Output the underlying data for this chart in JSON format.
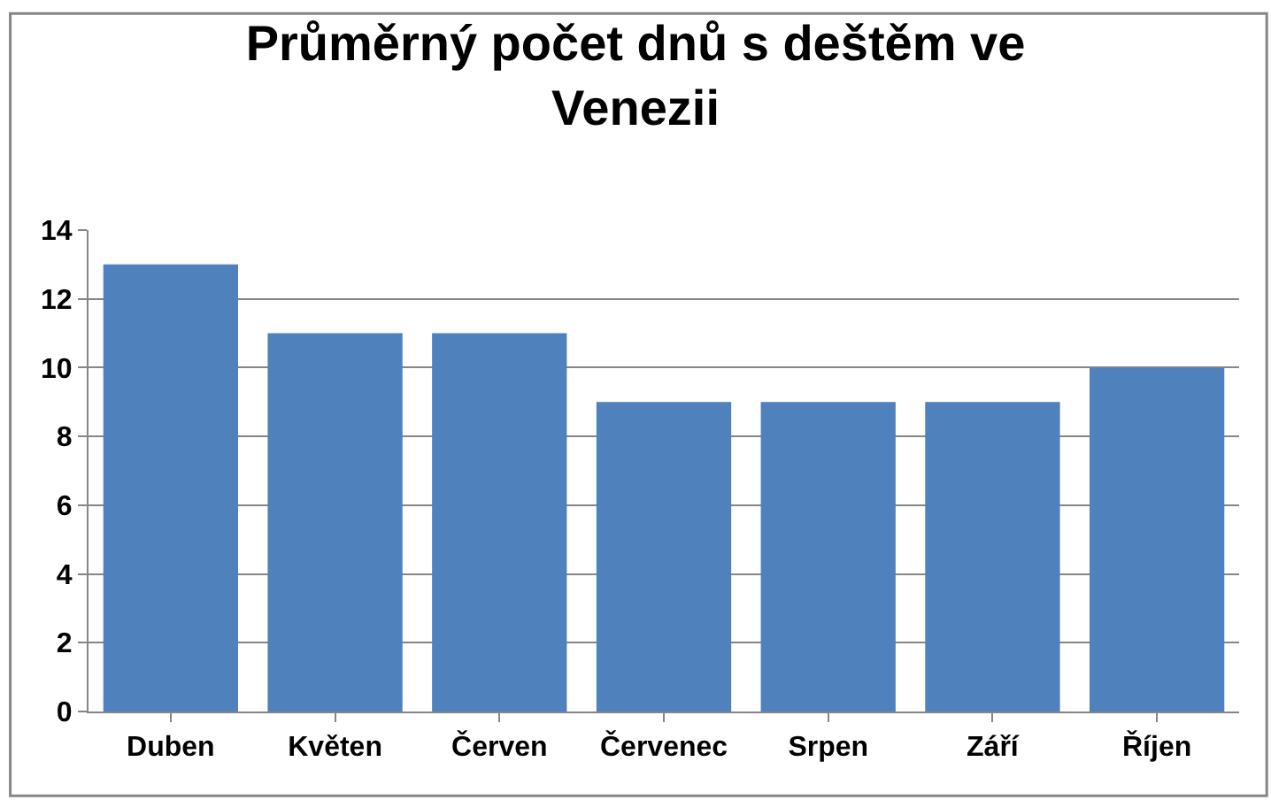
{
  "chart_data": {
    "type": "bar",
    "title": "Průměrný počet dnů s deštěm ve Venezii",
    "categories": [
      "Duben",
      "Květen",
      "Červen",
      "Červenec",
      "Srpen",
      "Září",
      "Říjen"
    ],
    "values": [
      13,
      11,
      11,
      9,
      9,
      9,
      10
    ],
    "color": "#4f81bd",
    "ylim": [
      0,
      14
    ],
    "yticks": [
      0,
      2,
      4,
      6,
      8,
      10,
      12,
      14
    ],
    "grid": "y"
  }
}
